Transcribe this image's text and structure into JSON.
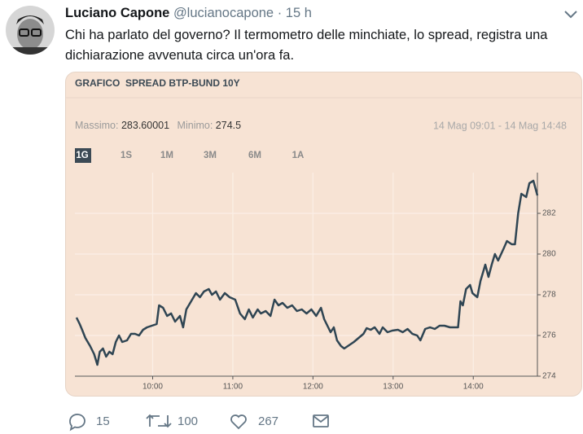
{
  "tweet": {
    "author_name": "Luciano Capone",
    "handle": "@lucianocapone",
    "separator": "·",
    "time": "15 h",
    "text": "Chi ha parlato del governo? Il termometro delle minchiate, lo spread, registra una dichiarazione avvenuta circa un'ora fa.",
    "replies": 15,
    "retweets": 100,
    "likes": 267
  },
  "chart_data": {
    "type": "line",
    "title": "GRAFICO  SPREAD BTP-BUND 10Y",
    "max_label": "Massimo:",
    "max": 283.60001,
    "min_label": "Minimo:",
    "min": 274.5,
    "range": "14 Mag 09:01 - 14 Mag 14:48",
    "periods": [
      "1G",
      "1S",
      "1M",
      "3M",
      "6M",
      "1A"
    ],
    "x": [
      9.05,
      9.09,
      9.12,
      9.16,
      9.22,
      9.27,
      9.31,
      9.34,
      9.38,
      9.42,
      9.46,
      9.5,
      9.54,
      9.58,
      9.62,
      9.68,
      9.73,
      9.78,
      9.83,
      9.88,
      9.93,
      9.99,
      10.05,
      10.08,
      10.13,
      10.18,
      10.23,
      10.28,
      10.34,
      10.38,
      10.42,
      10.48,
      10.54,
      10.59,
      10.64,
      10.7,
      10.74,
      10.79,
      10.84,
      10.9,
      10.96,
      11.03,
      11.09,
      11.15,
      11.2,
      11.25,
      11.31,
      11.35,
      11.41,
      11.47,
      11.52,
      11.57,
      11.62,
      11.68,
      11.74,
      11.8,
      11.86,
      11.92,
      11.98,
      12.04,
      12.1,
      12.14,
      12.18,
      12.22,
      12.26,
      12.3,
      12.35,
      12.39,
      12.45,
      12.51,
      12.57,
      12.63,
      12.67,
      12.72,
      12.77,
      12.83,
      12.87,
      12.93,
      12.99,
      13.06,
      13.12,
      13.18,
      13.24,
      13.3,
      13.34,
      13.4,
      13.46,
      13.52,
      13.58,
      13.64,
      13.71,
      13.77,
      13.81,
      13.84,
      13.87,
      13.91,
      13.96,
      13.99,
      14.05,
      14.09,
      14.15,
      14.19,
      14.23,
      14.27,
      14.31,
      14.38,
      14.42,
      14.48,
      14.52,
      14.56,
      14.6,
      14.66,
      14.7,
      14.75,
      14.8
    ],
    "series": [
      {
        "color": "#2f4553",
        "values": [
          276.88,
          276.56,
          276.28,
          275.88,
          275.48,
          275.08,
          274.56,
          275.2,
          275.36,
          274.96,
          275.2,
          275.08,
          275.68,
          276.0,
          275.68,
          275.76,
          276.08,
          276.08,
          276.0,
          276.28,
          276.4,
          276.48,
          276.56,
          277.48,
          277.36,
          276.96,
          277.08,
          276.68,
          276.96,
          276.4,
          277.28,
          277.68,
          278.08,
          277.88,
          278.16,
          278.28,
          278.0,
          278.16,
          277.76,
          278.08,
          277.88,
          277.76,
          277.08,
          276.8,
          277.28,
          276.88,
          277.28,
          277.08,
          277.2,
          276.96,
          277.76,
          277.48,
          277.6,
          277.36,
          277.48,
          277.2,
          277.28,
          277.08,
          277.28,
          276.96,
          277.36,
          276.8,
          276.48,
          276.16,
          276.4,
          275.76,
          275.48,
          275.36,
          275.52,
          275.68,
          275.88,
          276.08,
          276.36,
          276.28,
          276.4,
          276.08,
          276.4,
          276.16,
          276.24,
          276.28,
          276.16,
          276.32,
          276.08,
          276.0,
          275.76,
          276.32,
          276.4,
          276.32,
          276.48,
          276.48,
          276.4,
          276.4,
          276.4,
          277.68,
          277.48,
          278.28,
          278.48,
          278.08,
          277.88,
          278.68,
          279.48,
          278.88,
          279.48,
          280.0,
          279.68,
          280.28,
          280.64,
          280.48,
          280.48,
          282.0,
          282.96,
          282.8,
          283.48,
          283.6,
          282.88
        ]
      }
    ],
    "xlim": [
      9.03,
      14.8
    ],
    "xticks": [
      {
        "value": 10,
        "label": "10:00"
      },
      {
        "value": 11,
        "label": "11:00"
      },
      {
        "value": 12,
        "label": "12:00"
      },
      {
        "value": 13,
        "label": "13:00"
      },
      {
        "value": 14,
        "label": "14:00"
      }
    ],
    "ylim": [
      274,
      284
    ],
    "yticks": [
      274,
      276,
      278,
      280,
      282
    ],
    "grid": true
  }
}
